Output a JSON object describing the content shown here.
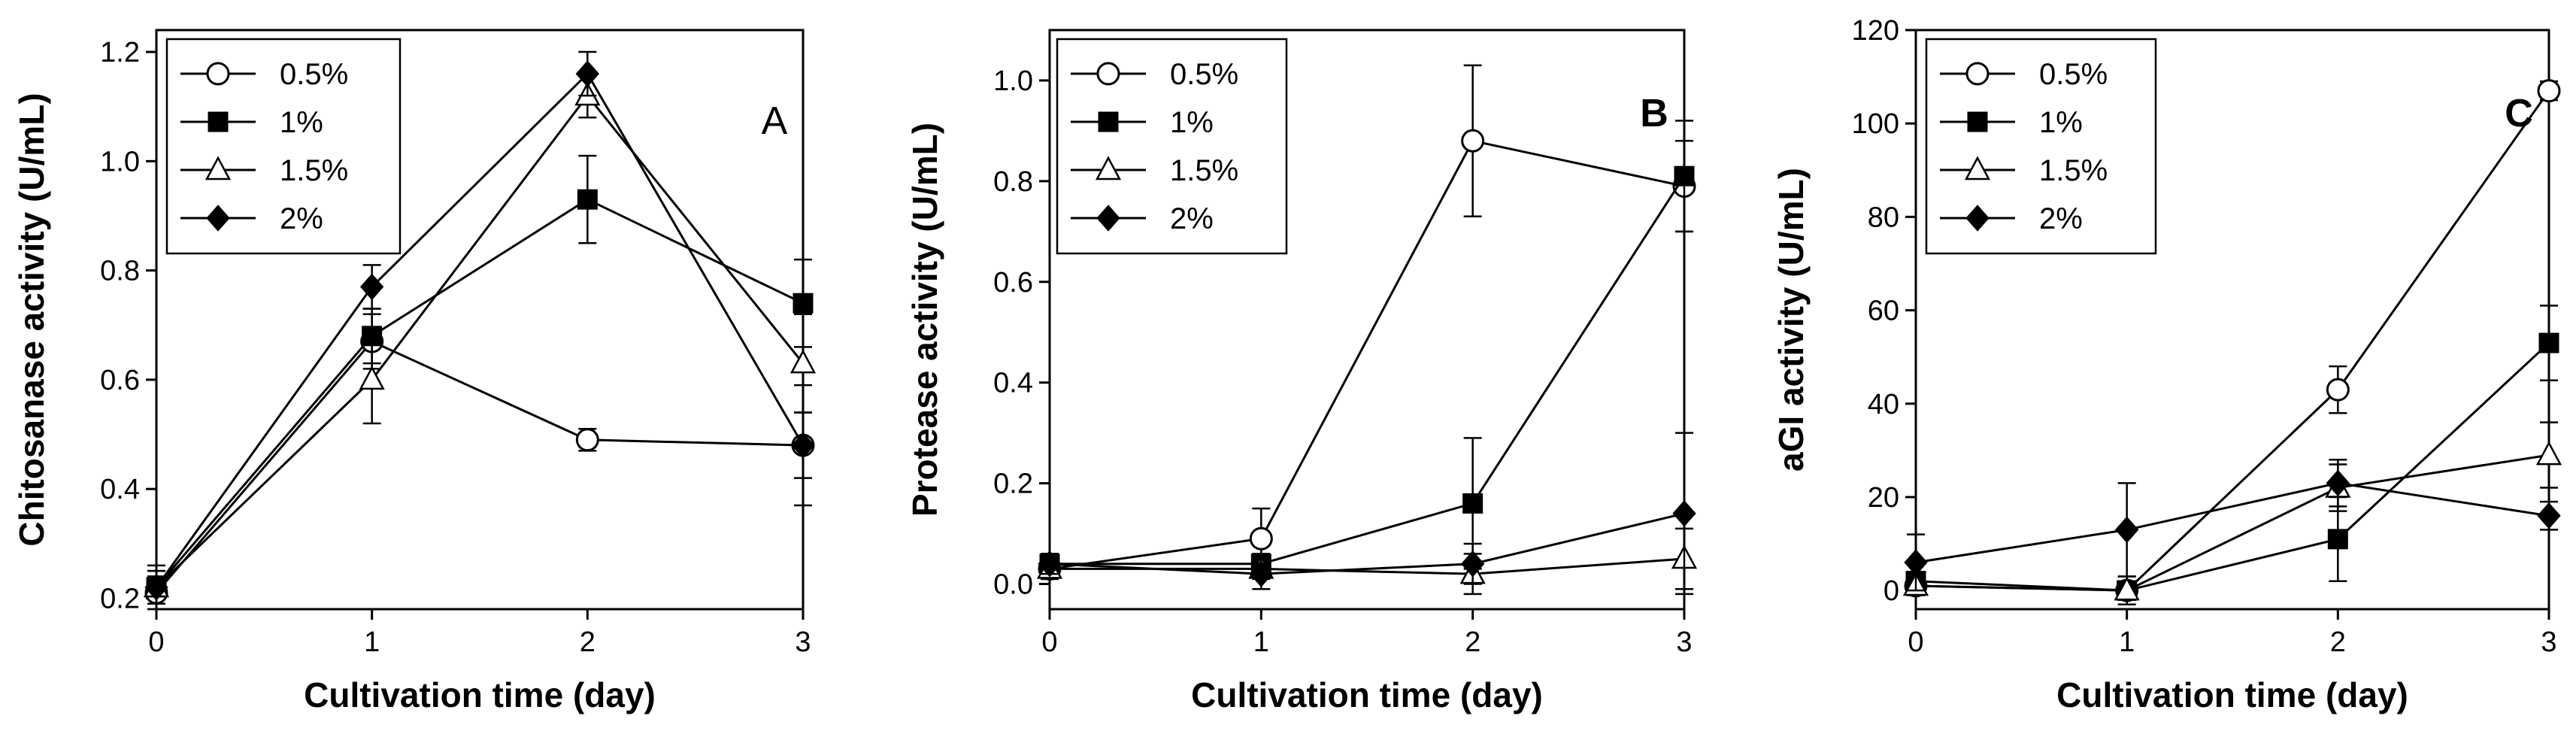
{
  "chart_data": [
    {
      "type": "line",
      "panel": "A",
      "panel_bold": false,
      "xlabel": "Cultivation time (day)",
      "ylabel": "Chitosanase activity (U/mL)",
      "x": [
        0,
        1,
        2,
        3
      ],
      "xlim": [
        0,
        3
      ],
      "xticks": [
        "0",
        "1",
        "2",
        "3"
      ],
      "ylim": [
        0.18,
        1.24
      ],
      "yticks": [
        0.2,
        0.4,
        0.6,
        0.8,
        1.0,
        1.2
      ],
      "ytick_labels": [
        "0.2",
        "0.4",
        "0.6",
        "0.8",
        "1.0",
        "1.2"
      ],
      "legend": "top-left",
      "series": [
        {
          "name": "0.5%",
          "marker": "circle-open",
          "values": [
            0.21,
            0.67,
            0.49,
            0.48
          ],
          "errors": [
            0.03,
            0.05,
            0.02,
            0.06
          ]
        },
        {
          "name": "1%",
          "marker": "square-filled",
          "values": [
            0.22,
            0.68,
            0.93,
            0.74
          ],
          "errors": [
            0.03,
            0.05,
            0.08,
            0.08
          ]
        },
        {
          "name": "1.5%",
          "marker": "triangle-open",
          "values": [
            0.22,
            0.6,
            1.12,
            0.63
          ],
          "errors": [
            0.03,
            0.08,
            0.04,
            0.09
          ]
        },
        {
          "name": "2%",
          "marker": "diamond-filled",
          "values": [
            0.22,
            0.77,
            1.16,
            0.48
          ],
          "errors": [
            0.04,
            0.04,
            0.04,
            0.11
          ]
        }
      ]
    },
    {
      "type": "line",
      "panel": "B",
      "panel_bold": true,
      "xlabel": "Cultivation time (day)",
      "ylabel": "Protease activity (U/mL)",
      "x": [
        0,
        1,
        2,
        3
      ],
      "xlim": [
        0,
        3
      ],
      "xticks": [
        "0",
        "1",
        "2",
        "3"
      ],
      "ylim": [
        -0.05,
        1.1
      ],
      "yticks": [
        0.0,
        0.2,
        0.4,
        0.6,
        0.8,
        1.0
      ],
      "ytick_labels": [
        "0.0",
        "0.2",
        "0.4",
        "0.6",
        "0.8",
        "1.0"
      ],
      "legend": "top-left",
      "series": [
        {
          "name": "0.5%",
          "marker": "circle-open",
          "values": [
            0.03,
            0.09,
            0.88,
            0.79
          ],
          "errors": [
            0.02,
            0.06,
            0.15,
            0.09
          ]
        },
        {
          "name": "1%",
          "marker": "square-filled",
          "values": [
            0.04,
            0.04,
            0.16,
            0.81
          ],
          "errors": [
            0.02,
            0.02,
            0.13,
            0.11
          ]
        },
        {
          "name": "1.5%",
          "marker": "triangle-open",
          "values": [
            0.03,
            0.03,
            0.02,
            0.05
          ],
          "errors": [
            0.02,
            0.02,
            0.04,
            0.06
          ]
        },
        {
          "name": "2%",
          "marker": "diamond-filled",
          "values": [
            0.04,
            0.02,
            0.04,
            0.14
          ],
          "errors": [
            0.02,
            0.03,
            0.04,
            0.16
          ]
        }
      ]
    },
    {
      "type": "line",
      "panel": "C",
      "panel_bold": true,
      "xlabel": "Cultivation time (day)",
      "ylabel": "aGI activity (U/mL)",
      "x": [
        0,
        1,
        2,
        3
      ],
      "xlim": [
        0,
        3
      ],
      "xticks": [
        "0",
        "1",
        "2",
        "3"
      ],
      "ylim": [
        -4,
        120
      ],
      "yticks": [
        0,
        20,
        40,
        60,
        80,
        100,
        120
      ],
      "ytick_labels": [
        "0",
        "20",
        "40",
        "60",
        "80",
        "100",
        "120"
      ],
      "legend": "top-left",
      "series": [
        {
          "name": "0.5%",
          "marker": "circle-open",
          "values": [
            1,
            0,
            43,
            107
          ],
          "errors": [
            2,
            2,
            5,
            2
          ]
        },
        {
          "name": "1%",
          "marker": "square-filled",
          "values": [
            2,
            0,
            11,
            53
          ],
          "errors": [
            2,
            2,
            9,
            8
          ]
        },
        {
          "name": "1.5%",
          "marker": "triangle-open",
          "values": [
            1,
            0,
            22,
            29
          ],
          "errors": [
            2,
            3,
            5,
            7
          ]
        },
        {
          "name": "2%",
          "marker": "diamond-filled",
          "values": [
            6,
            13,
            23,
            16
          ],
          "errors": [
            6,
            10,
            5,
            3
          ]
        }
      ]
    }
  ]
}
